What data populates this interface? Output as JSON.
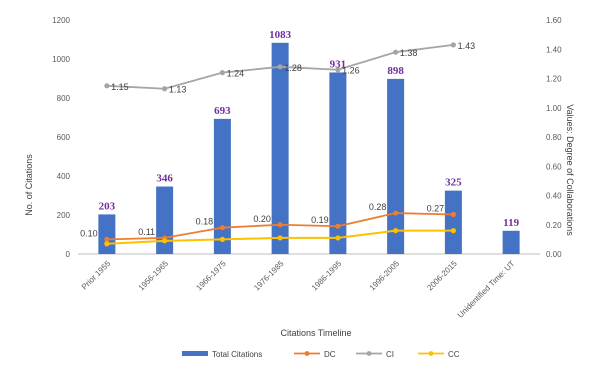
{
  "chart_data": {
    "type": "bar",
    "categories": [
      "Prior 1955",
      "1956-1965",
      "1966-1975",
      "1976-1985",
      "1986-1995",
      "1996-2005",
      "2006-2015",
      "Unidentified Time: UT"
    ],
    "series": [
      {
        "name": "Total Citations",
        "type": "bar",
        "axis": "left",
        "values": [
          203,
          346,
          693,
          1083,
          931,
          898,
          325,
          119
        ],
        "labels": [
          "203",
          "346",
          "693",
          "1083",
          "931",
          "898",
          "325",
          "119"
        ]
      },
      {
        "name": "DC",
        "type": "line",
        "axis": "right",
        "values": [
          0.1,
          0.11,
          0.18,
          0.2,
          0.19,
          0.28,
          0.27,
          null
        ],
        "labels": [
          "0.10",
          "0.11",
          "0.18",
          "0.20",
          "0.19",
          "0.28",
          "0.27",
          ""
        ]
      },
      {
        "name": "CI",
        "type": "line",
        "axis": "right",
        "values": [
          1.15,
          1.13,
          1.24,
          1.28,
          1.26,
          1.38,
          1.43,
          null
        ],
        "labels": [
          "1.15",
          "1.13",
          "1.24",
          "1.28",
          "1.26",
          "1.38",
          "1.43",
          ""
        ]
      },
      {
        "name": "CC",
        "type": "line",
        "axis": "right",
        "values": [
          0.07,
          0.09,
          0.1,
          0.11,
          0.11,
          0.16,
          0.16,
          null
        ],
        "labels": []
      }
    ],
    "xlabel": "Citations Timeline",
    "ylabel": "No. of Citations",
    "y2label": "Values: Degree of Collaborations",
    "ylim": [
      0,
      1200
    ],
    "yticks": [
      "0",
      "200",
      "400",
      "600",
      "800",
      "1000",
      "1200"
    ],
    "y2lim": [
      0,
      1.6
    ],
    "y2ticks": [
      "0.00",
      "0.20",
      "0.40",
      "0.60",
      "0.80",
      "1.00",
      "1.20",
      "1.40",
      "1.60"
    ],
    "colors": {
      "Total Citations": "#4472c4",
      "DC": "#ed7d31",
      "CI": "#a5a5a5",
      "CC": "#ffc000",
      "bar_label": "#7030a0"
    },
    "grid": false,
    "legend": "bottom"
  }
}
